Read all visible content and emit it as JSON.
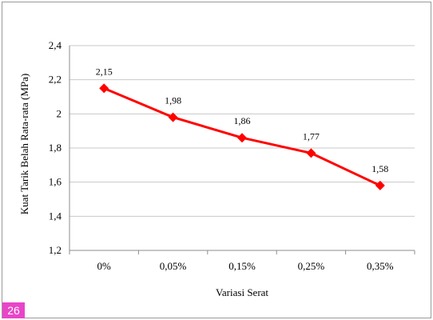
{
  "chart_data": {
    "type": "line",
    "categories": [
      "0%",
      "0,05%",
      "0,15%",
      "0,25%",
      "0,35%"
    ],
    "series": [
      {
        "values": [
          2.15,
          1.98,
          1.86,
          1.77,
          1.58
        ],
        "labels": [
          "2,15",
          "1,98",
          "1,86",
          "1,77",
          "1,58"
        ]
      }
    ],
    "title": "",
    "xlabel": "Variasi Serat",
    "ylabel": "Kuat  Tarik Belah Rata-rata (MPa)",
    "ylim": [
      1.2,
      2.4
    ],
    "yticks": [
      1.2,
      1.4,
      1.6,
      1.8,
      2.0,
      2.2,
      2.4
    ],
    "ytick_labels": [
      "1,2",
      "1,4",
      "1,6",
      "1,8",
      "2",
      "2,2",
      "2,4"
    ],
    "grid": true,
    "legend": "none",
    "line_color": "#ff0000",
    "marker": "diamond",
    "grid_color": "#c8c8c8"
  },
  "page_badge": {
    "text": "26",
    "color": "#e845c8"
  }
}
